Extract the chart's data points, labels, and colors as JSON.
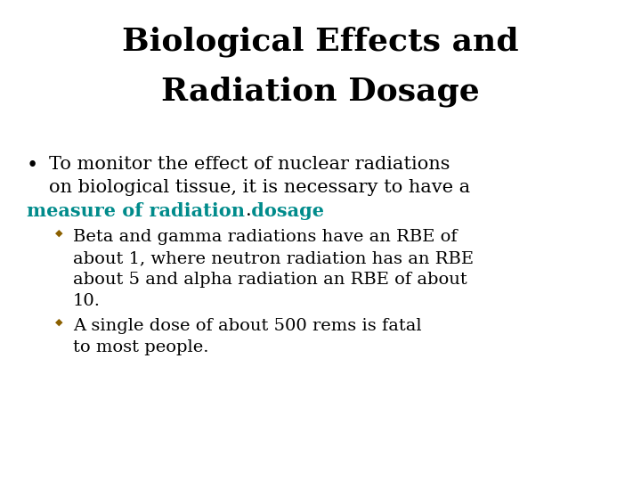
{
  "title_line1": "Biological Effects and",
  "title_line2": "Radiation Dosage",
  "title_color": "#000000",
  "title_fontsize": 26,
  "background_color": "#ffffff",
  "bullet_color": "#000000",
  "body_fontsize": 15,
  "sub_bullet_color": "#8B6000",
  "highlight_color": "#008B8B",
  "highlight_fontsize": 15
}
